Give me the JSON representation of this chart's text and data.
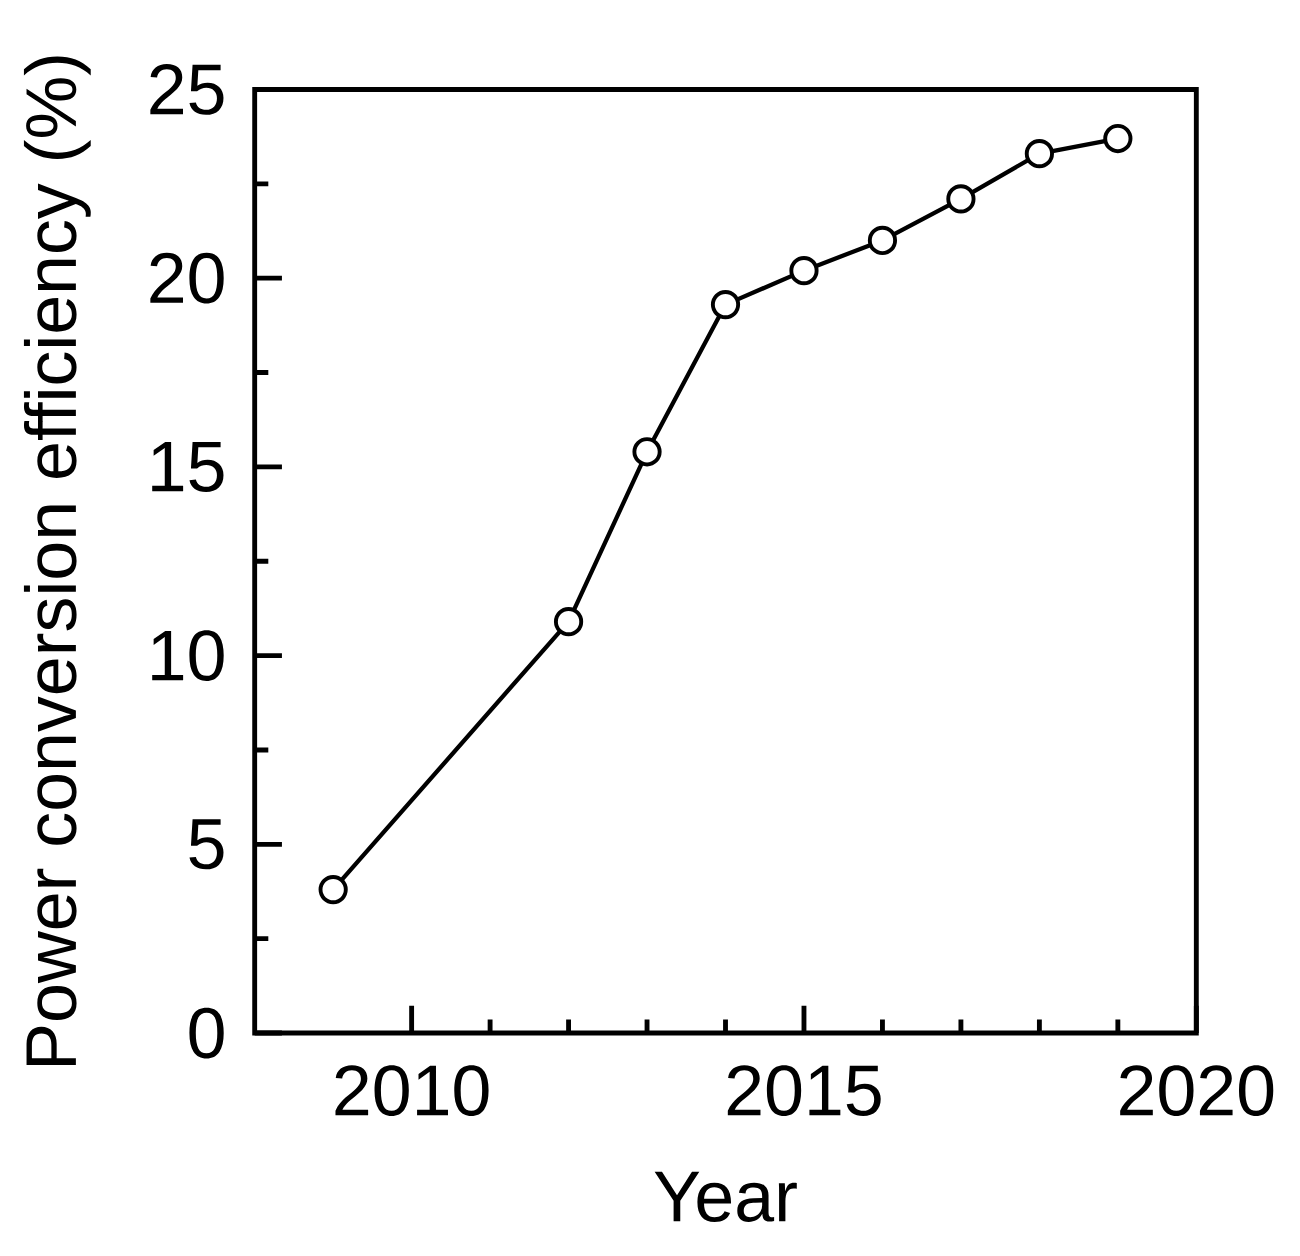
{
  "chart_data": {
    "type": "line",
    "xlabel": "Year",
    "ylabel": "Power conversion efficiency (%)",
    "x": [
      2009,
      2012,
      2013,
      2014,
      2015,
      2016,
      2017,
      2018,
      2019
    ],
    "series": [
      {
        "color": "#000000",
        "values": [
          3.8,
          10.9,
          15.4,
          19.3,
          20.2,
          21.0,
          22.1,
          23.3,
          23.7
        ]
      }
    ],
    "marker": "circle",
    "line_style": "solid",
    "xlim": [
      2008,
      2020
    ],
    "ylim": [
      0,
      25
    ],
    "xticks": [
      2010,
      2015,
      2020
    ],
    "yticks": [
      0,
      5,
      10,
      15,
      20,
      25
    ]
  }
}
